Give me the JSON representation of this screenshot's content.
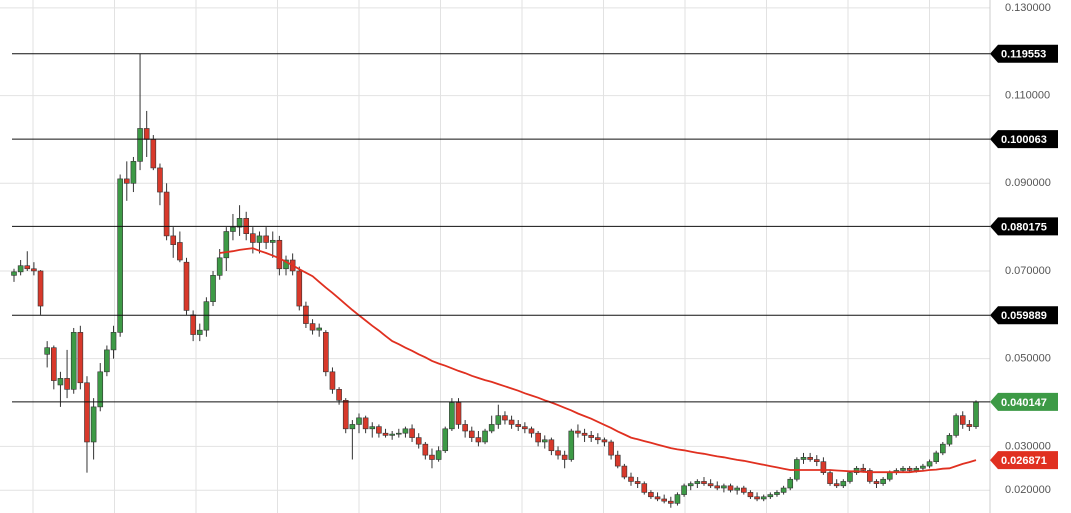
{
  "chart_data": {
    "type": "candlestick",
    "up_color": "#3d9a46",
    "down_color": "#d8392b",
    "grid": true,
    "ylim": [
      0.0148,
      0.1318
    ],
    "yticks": [
      {
        "value": 0.13,
        "label": "0.130000"
      },
      {
        "value": 0.11,
        "label": "0.110000"
      },
      {
        "value": 0.09,
        "label": "0.090000"
      },
      {
        "value": 0.07,
        "label": "0.070000"
      },
      {
        "value": 0.05,
        "label": "0.050000"
      },
      {
        "value": 0.03,
        "label": "0.030000"
      },
      {
        "value": 0.02,
        "label": "0.020000"
      }
    ],
    "levels": [
      {
        "value": 0.119553,
        "color": "#000000"
      },
      {
        "value": 0.100063,
        "color": "#000000"
      },
      {
        "value": 0.080175,
        "color": "#000000"
      },
      {
        "value": 0.059889,
        "color": "#000000"
      },
      {
        "value": 0.040147,
        "color": "#3d9a46"
      }
    ],
    "ohlc": [
      [
        0.069,
        0.0705,
        0.0675,
        0.0698
      ],
      [
        0.0698,
        0.0725,
        0.069,
        0.0712
      ],
      [
        0.0712,
        0.0745,
        0.07,
        0.0705
      ],
      [
        0.0705,
        0.072,
        0.069,
        0.07
      ],
      [
        0.07,
        0.0702,
        0.06,
        0.062
      ],
      [
        0.051,
        0.054,
        0.048,
        0.0525
      ],
      [
        0.0525,
        0.053,
        0.043,
        0.045
      ],
      [
        0.044,
        0.047,
        0.039,
        0.0455
      ],
      [
        0.0455,
        0.052,
        0.041,
        0.043
      ],
      [
        0.043,
        0.057,
        0.042,
        0.056
      ],
      [
        0.056,
        0.0575,
        0.043,
        0.0445
      ],
      [
        0.0445,
        0.046,
        0.024,
        0.031
      ],
      [
        0.031,
        0.041,
        0.027,
        0.039
      ],
      [
        0.039,
        0.049,
        0.038,
        0.047
      ],
      [
        0.047,
        0.053,
        0.046,
        0.052
      ],
      [
        0.052,
        0.0575,
        0.05,
        0.056
      ],
      [
        0.056,
        0.092,
        0.055,
        0.091
      ],
      [
        0.091,
        0.095,
        0.086,
        0.09
      ],
      [
        0.09,
        0.096,
        0.088,
        0.095
      ],
      [
        0.095,
        0.1196,
        0.093,
        0.1025
      ],
      [
        0.1025,
        0.1065,
        0.096,
        0.1
      ],
      [
        0.1,
        0.101,
        0.093,
        0.0935
      ],
      [
        0.0935,
        0.0945,
        0.085,
        0.088
      ],
      [
        0.088,
        0.09,
        0.077,
        0.078
      ],
      [
        0.078,
        0.08,
        0.073,
        0.076
      ],
      [
        0.0765,
        0.079,
        0.072,
        0.0725
      ],
      [
        0.072,
        0.073,
        0.06,
        0.061
      ],
      [
        0.06,
        0.061,
        0.054,
        0.0555
      ],
      [
        0.0555,
        0.058,
        0.054,
        0.0565
      ],
      [
        0.0565,
        0.064,
        0.055,
        0.063
      ],
      [
        0.063,
        0.07,
        0.062,
        0.069
      ],
      [
        0.069,
        0.075,
        0.068,
        0.073
      ],
      [
        0.073,
        0.08,
        0.07,
        0.079
      ],
      [
        0.079,
        0.083,
        0.077,
        0.08
      ],
      [
        0.08,
        0.085,
        0.078,
        0.082
      ],
      [
        0.082,
        0.0835,
        0.077,
        0.0785
      ],
      [
        0.0785,
        0.08,
        0.074,
        0.0765
      ],
      [
        0.0765,
        0.079,
        0.074,
        0.078
      ],
      [
        0.078,
        0.08,
        0.075,
        0.0765
      ],
      [
        0.0765,
        0.079,
        0.073,
        0.077
      ],
      [
        0.077,
        0.078,
        0.069,
        0.0705
      ],
      [
        0.0705,
        0.0735,
        0.069,
        0.0725
      ],
      [
        0.0725,
        0.074,
        0.069,
        0.07
      ],
      [
        0.07,
        0.071,
        0.061,
        0.062
      ],
      [
        0.062,
        0.063,
        0.057,
        0.058
      ],
      [
        0.058,
        0.059,
        0.0555,
        0.0565
      ],
      [
        0.0565,
        0.058,
        0.055,
        0.057
      ],
      [
        0.056,
        0.0565,
        0.046,
        0.047
      ],
      [
        0.047,
        0.048,
        0.042,
        0.043
      ],
      [
        0.043,
        0.0435,
        0.0395,
        0.0405
      ],
      [
        0.0405,
        0.041,
        0.033,
        0.034
      ],
      [
        0.034,
        0.036,
        0.027,
        0.035
      ],
      [
        0.035,
        0.0375,
        0.033,
        0.0365
      ],
      [
        0.0365,
        0.037,
        0.033,
        0.034
      ],
      [
        0.034,
        0.0355,
        0.032,
        0.0345
      ],
      [
        0.0345,
        0.035,
        0.032,
        0.033
      ],
      [
        0.033,
        0.034,
        0.032,
        0.0325
      ],
      [
        0.0325,
        0.0335,
        0.0315,
        0.0328
      ],
      [
        0.0328,
        0.034,
        0.032,
        0.033
      ],
      [
        0.033,
        0.0345,
        0.032,
        0.034
      ],
      [
        0.034,
        0.035,
        0.031,
        0.032
      ],
      [
        0.032,
        0.033,
        0.0295,
        0.0305
      ],
      [
        0.0305,
        0.031,
        0.027,
        0.028
      ],
      [
        0.028,
        0.0295,
        0.025,
        0.027
      ],
      [
        0.027,
        0.03,
        0.0265,
        0.029
      ],
      [
        0.029,
        0.0345,
        0.0285,
        0.034
      ],
      [
        0.034,
        0.041,
        0.0335,
        0.04
      ],
      [
        0.04,
        0.041,
        0.034,
        0.035
      ],
      [
        0.035,
        0.036,
        0.032,
        0.0335
      ],
      [
        0.0335,
        0.0345,
        0.031,
        0.032
      ],
      [
        0.032,
        0.0335,
        0.03,
        0.031
      ],
      [
        0.031,
        0.034,
        0.0305,
        0.0335
      ],
      [
        0.0335,
        0.037,
        0.033,
        0.035
      ],
      [
        0.035,
        0.0395,
        0.034,
        0.037
      ],
      [
        0.037,
        0.038,
        0.035,
        0.036
      ],
      [
        0.036,
        0.037,
        0.034,
        0.035
      ],
      [
        0.035,
        0.036,
        0.0335,
        0.0345
      ],
      [
        0.0345,
        0.0355,
        0.033,
        0.034
      ],
      [
        0.034,
        0.0345,
        0.032,
        0.033
      ],
      [
        0.033,
        0.0335,
        0.03,
        0.031
      ],
      [
        0.031,
        0.0325,
        0.0295,
        0.0315
      ],
      [
        0.0315,
        0.032,
        0.028,
        0.029
      ],
      [
        0.029,
        0.03,
        0.027,
        0.028
      ],
      [
        0.028,
        0.029,
        0.025,
        0.027
      ],
      [
        0.027,
        0.034,
        0.0265,
        0.0335
      ],
      [
        0.0335,
        0.035,
        0.032,
        0.033
      ],
      [
        0.033,
        0.034,
        0.031,
        0.0325
      ],
      [
        0.0325,
        0.0335,
        0.031,
        0.032
      ],
      [
        0.032,
        0.033,
        0.0305,
        0.0315
      ],
      [
        0.0315,
        0.032,
        0.03,
        0.031
      ],
      [
        0.031,
        0.0315,
        0.027,
        0.028
      ],
      [
        0.028,
        0.029,
        0.025,
        0.0255
      ],
      [
        0.0255,
        0.026,
        0.0225,
        0.023
      ],
      [
        0.023,
        0.024,
        0.021,
        0.022
      ],
      [
        0.022,
        0.023,
        0.0205,
        0.0215
      ],
      [
        0.0215,
        0.022,
        0.019,
        0.0195
      ],
      [
        0.0195,
        0.02,
        0.018,
        0.0185
      ],
      [
        0.0185,
        0.0195,
        0.0175,
        0.018
      ],
      [
        0.018,
        0.019,
        0.017,
        0.0175
      ],
      [
        0.0175,
        0.0185,
        0.016,
        0.017
      ],
      [
        0.017,
        0.0195,
        0.0165,
        0.019
      ],
      [
        0.019,
        0.0215,
        0.0185,
        0.021
      ],
      [
        0.021,
        0.022,
        0.02,
        0.0215
      ],
      [
        0.0215,
        0.0225,
        0.0205,
        0.022
      ],
      [
        0.022,
        0.023,
        0.021,
        0.0215
      ],
      [
        0.0215,
        0.0225,
        0.0205,
        0.021
      ],
      [
        0.021,
        0.022,
        0.02,
        0.0205
      ],
      [
        0.0205,
        0.0215,
        0.0195,
        0.021
      ],
      [
        0.021,
        0.0215,
        0.0195,
        0.02
      ],
      [
        0.02,
        0.021,
        0.019,
        0.0205
      ],
      [
        0.0205,
        0.021,
        0.019,
        0.0195
      ],
      [
        0.0195,
        0.02,
        0.018,
        0.0185
      ],
      [
        0.0185,
        0.0195,
        0.0175,
        0.018
      ],
      [
        0.018,
        0.019,
        0.0175,
        0.0185
      ],
      [
        0.0185,
        0.0195,
        0.018,
        0.019
      ],
      [
        0.019,
        0.02,
        0.0185,
        0.0195
      ],
      [
        0.0195,
        0.021,
        0.019,
        0.0205
      ],
      [
        0.0205,
        0.023,
        0.02,
        0.0225
      ],
      [
        0.0225,
        0.0275,
        0.022,
        0.027
      ],
      [
        0.027,
        0.0285,
        0.026,
        0.0275
      ],
      [
        0.0275,
        0.0285,
        0.0265,
        0.027
      ],
      [
        0.027,
        0.028,
        0.0255,
        0.0265
      ],
      [
        0.0265,
        0.0275,
        0.0235,
        0.024
      ],
      [
        0.024,
        0.0245,
        0.021,
        0.0215
      ],
      [
        0.0215,
        0.0225,
        0.0205,
        0.021
      ],
      [
        0.021,
        0.0225,
        0.0205,
        0.022
      ],
      [
        0.022,
        0.0245,
        0.0215,
        0.024
      ],
      [
        0.024,
        0.0255,
        0.0235,
        0.025
      ],
      [
        0.025,
        0.026,
        0.024,
        0.0245
      ],
      [
        0.0245,
        0.025,
        0.0215,
        0.022
      ],
      [
        0.022,
        0.0225,
        0.0205,
        0.0215
      ],
      [
        0.0215,
        0.023,
        0.021,
        0.0225
      ],
      [
        0.0225,
        0.0245,
        0.022,
        0.024
      ],
      [
        0.024,
        0.025,
        0.0235,
        0.0245
      ],
      [
        0.0245,
        0.0255,
        0.024,
        0.025
      ],
      [
        0.025,
        0.0255,
        0.024,
        0.0245
      ],
      [
        0.0245,
        0.0255,
        0.024,
        0.025
      ],
      [
        0.025,
        0.026,
        0.0245,
        0.0255
      ],
      [
        0.0255,
        0.027,
        0.025,
        0.0265
      ],
      [
        0.0265,
        0.029,
        0.026,
        0.0285
      ],
      [
        0.0285,
        0.031,
        0.028,
        0.0305
      ],
      [
        0.0305,
        0.033,
        0.03,
        0.0325
      ],
      [
        0.0325,
        0.0375,
        0.032,
        0.037
      ],
      [
        0.037,
        0.038,
        0.034,
        0.035
      ],
      [
        0.035,
        0.036,
        0.0335,
        0.0345
      ],
      [
        0.0345,
        0.0405,
        0.034,
        0.040147
      ]
    ],
    "ma": {
      "color": "#e03020",
      "values": [
        null,
        null,
        null,
        null,
        null,
        null,
        null,
        null,
        null,
        null,
        null,
        null,
        null,
        null,
        null,
        null,
        null,
        null,
        null,
        null,
        null,
        null,
        null,
        null,
        null,
        null,
        null,
        null,
        null,
        null,
        null,
        0.0741,
        0.0743,
        0.0745,
        0.0748,
        0.075,
        0.0752,
        0.0746,
        0.0741,
        0.0735,
        0.0729,
        0.0721,
        0.0713,
        0.0704,
        0.0696,
        0.0688,
        0.0675,
        0.0662,
        0.065,
        0.0637,
        0.0624,
        0.0611,
        0.0599,
        0.0587,
        0.0575,
        0.0564,
        0.0552,
        0.054,
        0.0533,
        0.0525,
        0.0518,
        0.051,
        0.0503,
        0.0495,
        0.0489,
        0.0484,
        0.0478,
        0.0472,
        0.0467,
        0.0461,
        0.0456,
        0.0451,
        0.0447,
        0.0442,
        0.0437,
        0.0432,
        0.0427,
        0.0421,
        0.0416,
        0.0411,
        0.0405,
        0.04,
        0.0394,
        0.0388,
        0.0382,
        0.0375,
        0.0369,
        0.0363,
        0.0356,
        0.0349,
        0.0342,
        0.0334,
        0.0327,
        0.032,
        0.0316,
        0.0312,
        0.0308,
        0.0304,
        0.03,
        0.0296,
        0.0293,
        0.0291,
        0.0288,
        0.0285,
        0.0283,
        0.028,
        0.0277,
        0.0275,
        0.0272,
        0.0269,
        0.0267,
        0.0264,
        0.0261,
        0.0258,
        0.0255,
        0.0252,
        0.0249,
        0.0246,
        0.0246,
        0.0246,
        0.0246,
        0.0246,
        0.0246,
        0.0246,
        0.0245,
        0.0244,
        0.0243,
        0.0243,
        0.0242,
        0.0241,
        0.0241,
        0.0241,
        0.0241,
        0.0241,
        0.0241,
        0.0241,
        0.0243,
        0.0244,
        0.0246,
        0.0247,
        0.0249,
        0.025,
        0.0255,
        0.026,
        0.0264,
        0.026871
      ]
    }
  }
}
